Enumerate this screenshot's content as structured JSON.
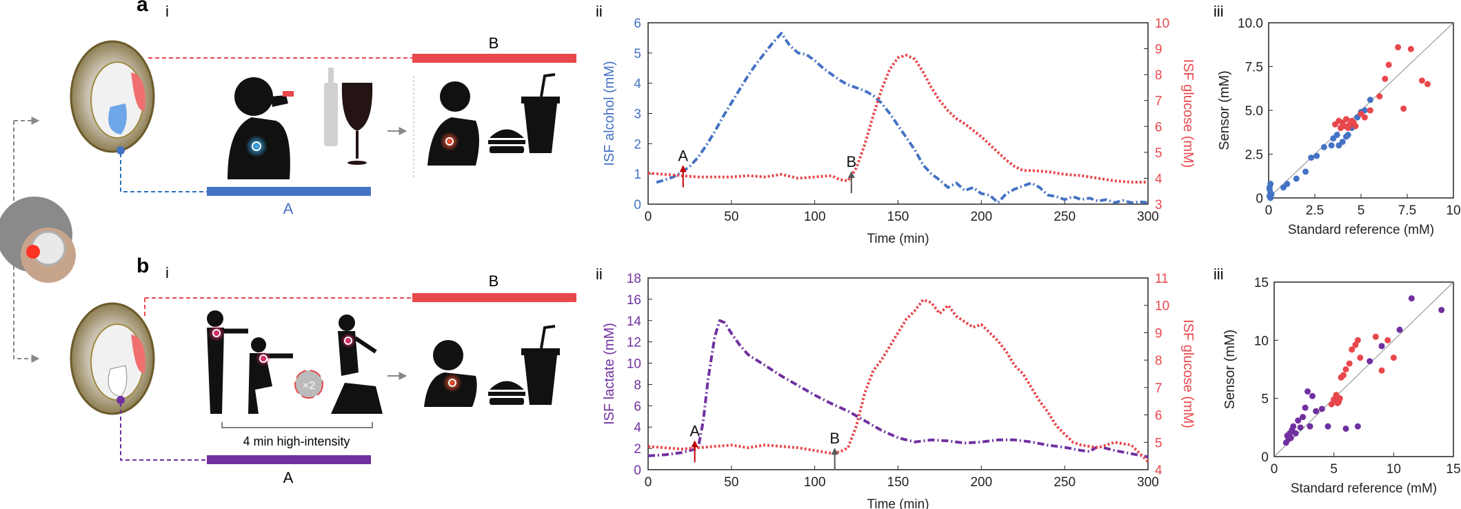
{
  "panel_a": {
    "letter": "a",
    "sub_i": "i",
    "sub_ii": "ii",
    "sub_iii": "iii",
    "label_A": "A",
    "label_B": "B"
  },
  "panel_b": {
    "letter": "b",
    "sub_i": "i",
    "sub_ii": "ii",
    "sub_iii": "iii",
    "label_A": "A",
    "label_B": "B",
    "exercise_label": "4 min high-intensity",
    "repeat_label": "×2"
  },
  "colors": {
    "blue": "#4472c4",
    "red": "#e8474c",
    "purple": "#7030a0",
    "gray": "#888888",
    "dark_red": "#c00000"
  },
  "chart_data": [
    {
      "id": "a-ii",
      "type": "line",
      "xlabel": "Time (min)",
      "ylabel_left": "ISF alcohol (mM)",
      "ylabel_right": "ISF glucose (mM)",
      "xlim": [
        0,
        300
      ],
      "ylim_left": [
        0,
        6
      ],
      "ylim_right": [
        3,
        10
      ],
      "xticks": [
        "0",
        "50",
        "100",
        "150",
        "200",
        "250",
        "300"
      ],
      "yticks_left": [
        "0",
        "1",
        "2",
        "3",
        "4",
        "5",
        "6"
      ],
      "yticks_right": [
        "3",
        "4",
        "5",
        "6",
        "7",
        "8",
        "9",
        "10"
      ],
      "annotations": [
        {
          "text": "A",
          "x": 21,
          "y_left": 1.2,
          "color": "#c00000"
        },
        {
          "text": "B",
          "x": 122,
          "y_left": 1.0,
          "color": "#555555"
        }
      ],
      "series": [
        {
          "axis": "left",
          "color": "#4472c4",
          "dash": "10 4 2 4",
          "x": [
            5,
            10,
            15,
            20,
            25,
            30,
            35,
            40,
            45,
            50,
            55,
            60,
            65,
            70,
            75,
            80,
            85,
            90,
            95,
            100,
            105,
            110,
            115,
            120,
            125,
            130,
            135,
            140,
            145,
            150,
            155,
            160,
            165,
            170,
            175,
            180,
            185,
            190,
            195,
            200,
            205,
            210,
            215,
            220,
            225,
            230,
            235,
            240,
            245,
            250,
            255,
            260,
            265,
            270,
            275,
            280,
            285,
            290,
            295,
            300
          ],
          "y": [
            0.72,
            0.8,
            0.9,
            1.05,
            1.25,
            1.55,
            1.95,
            2.4,
            2.9,
            3.35,
            3.8,
            4.25,
            4.65,
            5.0,
            5.35,
            5.65,
            5.25,
            5.0,
            4.95,
            4.75,
            4.5,
            4.3,
            4.1,
            3.95,
            3.85,
            3.75,
            3.6,
            3.35,
            3.0,
            2.6,
            2.2,
            1.8,
            1.3,
            1.0,
            0.8,
            0.55,
            0.7,
            0.45,
            0.55,
            0.35,
            0.3,
            0.05,
            0.35,
            0.5,
            0.6,
            0.7,
            0.55,
            0.3,
            0.25,
            0.15,
            0.25,
            0.15,
            0.2,
            0.1,
            0.15,
            0.05,
            0.12,
            0.05,
            0.08,
            0.05
          ]
        },
        {
          "axis": "right",
          "color": "#e8474c",
          "dash": "3 3",
          "x": [
            0,
            10,
            20,
            30,
            40,
            50,
            60,
            70,
            80,
            90,
            100,
            110,
            115,
            120,
            125,
            130,
            135,
            140,
            145,
            150,
            155,
            160,
            165,
            170,
            175,
            180,
            185,
            190,
            195,
            200,
            205,
            210,
            215,
            220,
            225,
            230,
            240,
            250,
            260,
            270,
            280,
            290,
            300
          ],
          "y": [
            4.2,
            4.15,
            4.1,
            4.05,
            4.05,
            4.05,
            4.1,
            4.05,
            4.15,
            4.0,
            4.05,
            4.1,
            3.95,
            3.9,
            4.4,
            5.3,
            6.4,
            7.4,
            8.2,
            8.65,
            8.75,
            8.6,
            8.1,
            7.5,
            7.0,
            6.6,
            6.3,
            6.1,
            5.85,
            5.6,
            5.3,
            5.0,
            4.7,
            4.45,
            4.3,
            4.3,
            4.25,
            4.15,
            4.1,
            4.0,
            3.9,
            3.85,
            3.85
          ]
        }
      ]
    },
    {
      "id": "a-iii",
      "type": "scatter",
      "xlabel": "Standard reference (mM)",
      "ylabel": "Sensor (mM)",
      "xlim": [
        0,
        10
      ],
      "ylim": [
        0,
        10
      ],
      "xticks": [
        "0",
        "2.5",
        "5",
        "7.5",
        "10"
      ],
      "yticks": [
        "0",
        "2.5",
        "5.0",
        "7.5",
        "10.0"
      ],
      "series": [
        {
          "color": "#4472c4",
          "x": [
            0.05,
            0.1,
            0.05,
            0.1,
            0.15,
            0.05,
            0.1,
            0.8,
            1.0,
            1.5,
            2.0,
            2.3,
            2.6,
            3.0,
            3.4,
            3.5,
            3.7,
            3.8,
            4.0,
            4.2,
            4.3,
            4.5,
            4.6,
            4.8,
            5.0,
            5.2,
            5.5
          ],
          "y": [
            0.1,
            0.3,
            0.6,
            0.8,
            0.2,
            0.5,
            0.0,
            0.6,
            0.8,
            1.1,
            1.5,
            2.3,
            2.4,
            2.9,
            3.0,
            3.4,
            3.6,
            3.0,
            3.2,
            3.5,
            3.6,
            4.0,
            4.2,
            4.6,
            4.9,
            5.0,
            5.6
          ]
        },
        {
          "color": "#e8474c",
          "x": [
            3.6,
            3.8,
            3.9,
            4.0,
            4.1,
            4.2,
            4.3,
            4.4,
            4.5,
            4.6,
            4.7,
            5.0,
            5.2,
            5.5,
            6.0,
            6.3,
            6.5,
            7.0,
            7.3,
            7.7,
            8.3,
            8.6
          ],
          "y": [
            4.2,
            4.4,
            4.0,
            4.3,
            4.1,
            4.5,
            4.0,
            4.2,
            4.4,
            4.3,
            4.1,
            4.8,
            4.6,
            5.0,
            5.8,
            6.8,
            7.6,
            8.6,
            5.1,
            8.5,
            6.7,
            6.5
          ]
        }
      ]
    },
    {
      "id": "b-ii",
      "type": "line",
      "xlabel": "Time (min)",
      "ylabel_left": "ISF lactate (mM)",
      "ylabel_right": "ISF glucose (mM)",
      "xlim": [
        0,
        300
      ],
      "ylim_left": [
        0,
        18
      ],
      "ylim_right": [
        4,
        11
      ],
      "xticks": [
        "0",
        "50",
        "100",
        "150",
        "200",
        "250",
        "300"
      ],
      "yticks_left": [
        "0",
        "2",
        "4",
        "6",
        "8",
        "10",
        "12",
        "14",
        "16",
        "18"
      ],
      "yticks_right": [
        "4",
        "5",
        "6",
        "7",
        "8",
        "9",
        "10",
        "11"
      ],
      "annotations": [
        {
          "text": "A",
          "x": 28,
          "y_left": 2.5,
          "color": "#c00000"
        },
        {
          "text": "B",
          "x": 112,
          "y_left": 1.8,
          "color": "#555555"
        }
      ],
      "series": [
        {
          "axis": "left",
          "color": "#7030a0",
          "dash": "10 4 2 4",
          "x": [
            0,
            10,
            20,
            25,
            30,
            33,
            36,
            40,
            43,
            46,
            50,
            55,
            60,
            70,
            80,
            90,
            100,
            110,
            120,
            130,
            140,
            150,
            160,
            170,
            180,
            190,
            200,
            210,
            220,
            230,
            240,
            250,
            260,
            265,
            270,
            280,
            290,
            300
          ],
          "y": [
            1.3,
            1.4,
            1.6,
            1.8,
            2.0,
            4.5,
            8.5,
            12.5,
            14.0,
            13.8,
            12.8,
            11.7,
            10.8,
            9.8,
            8.8,
            7.9,
            7.0,
            6.2,
            5.5,
            4.6,
            3.7,
            3.0,
            2.6,
            2.8,
            2.7,
            2.5,
            2.6,
            2.8,
            2.8,
            2.6,
            2.3,
            2.1,
            1.8,
            1.7,
            2.2,
            1.8,
            1.5,
            1.2
          ]
        },
        {
          "axis": "right",
          "color": "#e8474c",
          "dash": "3 3",
          "x": [
            0,
            10,
            20,
            30,
            40,
            50,
            60,
            70,
            80,
            90,
            100,
            110,
            115,
            120,
            125,
            130,
            135,
            140,
            145,
            150,
            155,
            160,
            165,
            170,
            175,
            180,
            185,
            190,
            195,
            200,
            205,
            210,
            215,
            220,
            225,
            230,
            235,
            240,
            245,
            250,
            255,
            260,
            270,
            280,
            290,
            300
          ],
          "y": [
            4.85,
            4.8,
            4.75,
            4.8,
            4.85,
            4.9,
            4.8,
            4.9,
            4.85,
            4.8,
            4.7,
            4.6,
            4.65,
            4.8,
            5.6,
            6.8,
            7.6,
            8.0,
            8.5,
            9.0,
            9.5,
            9.8,
            10.2,
            10.1,
            9.7,
            10.0,
            9.6,
            9.4,
            9.2,
            9.3,
            9.0,
            8.7,
            8.3,
            7.8,
            7.5,
            7.0,
            6.5,
            6.1,
            5.6,
            5.3,
            5.0,
            4.9,
            4.8,
            5.0,
            4.9,
            4.3
          ]
        }
      ]
    },
    {
      "id": "b-iii",
      "type": "scatter",
      "xlabel": "Standard reference (mM)",
      "ylabel": "Sensor (mM)",
      "xlim": [
        0,
        15
      ],
      "ylim": [
        0,
        15
      ],
      "xticks": [
        "0",
        "5",
        "10",
        "15"
      ],
      "yticks": [
        "0",
        "5",
        "10",
        "15"
      ],
      "series": [
        {
          "color": "#7030a0",
          "x": [
            1.0,
            1.1,
            1.2,
            1.3,
            1.4,
            1.5,
            1.6,
            1.8,
            2.0,
            2.2,
            2.4,
            2.6,
            2.8,
            3.0,
            3.2,
            3.5,
            4.0,
            4.5,
            5.0,
            6.0,
            7.0,
            8.0,
            9.0,
            10.5,
            11.5,
            14.0
          ],
          "y": [
            1.2,
            1.8,
            1.5,
            2.0,
            1.6,
            2.3,
            2.6,
            2.0,
            3.1,
            2.5,
            3.4,
            4.2,
            5.6,
            2.6,
            5.2,
            3.9,
            4.1,
            2.6,
            4.9,
            2.4,
            2.6,
            8.2,
            9.5,
            10.9,
            13.6,
            12.6
          ]
        },
        {
          "color": "#e8474c",
          "x": [
            4.8,
            5.0,
            5.1,
            5.2,
            5.3,
            5.4,
            5.5,
            5.6,
            5.8,
            6.0,
            6.3,
            6.5,
            6.8,
            7.0,
            7.2,
            8.5,
            9.0,
            9.5,
            10.0
          ],
          "y": [
            4.5,
            4.9,
            5.0,
            5.3,
            4.6,
            4.7,
            5.0,
            6.8,
            7.0,
            7.5,
            8.0,
            9.2,
            9.6,
            10.0,
            8.5,
            10.3,
            7.4,
            10.0,
            8.5
          ]
        }
      ]
    }
  ]
}
